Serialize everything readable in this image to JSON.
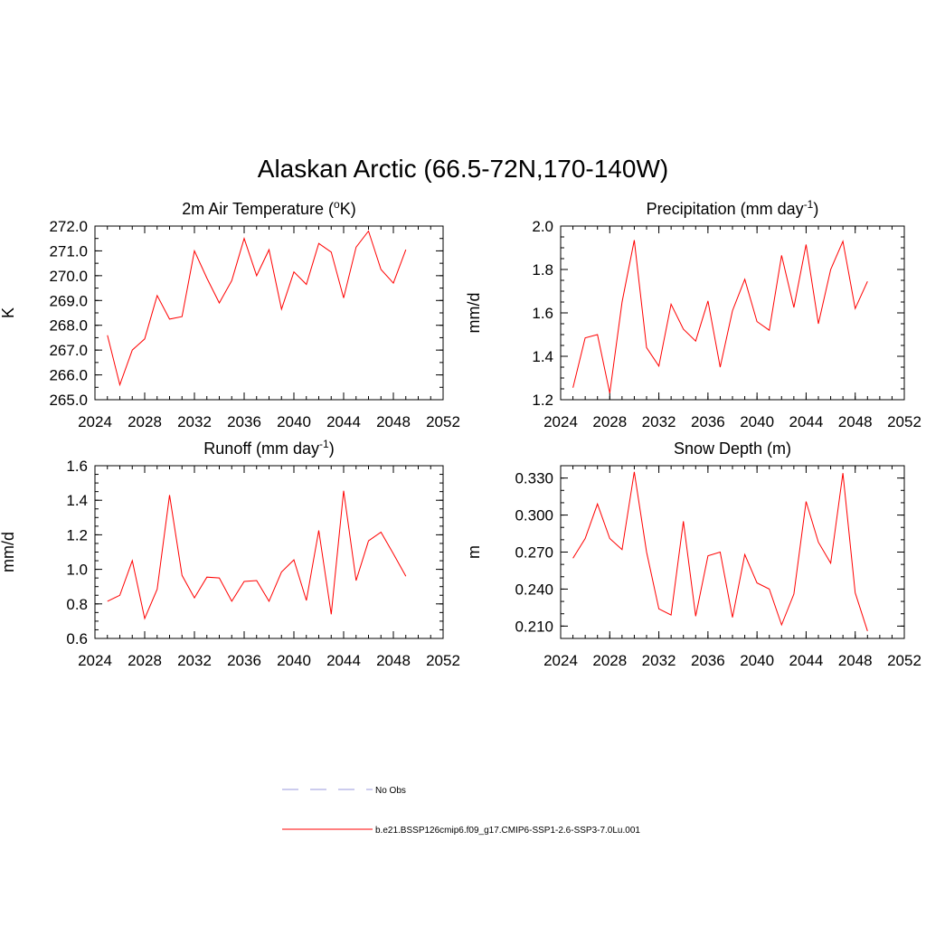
{
  "figure_title": "Alaskan Arctic (66.5-72N,170-140W)",
  "chart_data": [
    {
      "type": "line",
      "title_parts": [
        "2m Air Temperature (",
        "o",
        "K)"
      ],
      "title_modes": [
        "normal",
        "sup",
        "normal"
      ],
      "ylabel": "K",
      "xlim": [
        2024,
        2052
      ],
      "ylim": [
        265.0,
        272.0
      ],
      "xticks": [
        2024,
        2028,
        2032,
        2036,
        2040,
        2044,
        2048,
        2052
      ],
      "xtick_labels": [
        "2024",
        "2028",
        "2032",
        "2036",
        "2040",
        "2044",
        "2048",
        "2052"
      ],
      "yticks": [
        265.0,
        266.0,
        267.0,
        268.0,
        269.0,
        270.0,
        271.0,
        272.0
      ],
      "ytick_labels": [
        "265.0",
        "266.0",
        "267.0",
        "268.0",
        "269.0",
        "270.0",
        "271.0",
        "272.0"
      ],
      "y_minor_step": 0.5,
      "series": [
        {
          "color": "#ff0000",
          "x": [
            2025,
            2026,
            2027,
            2028,
            2029,
            2030,
            2031,
            2032,
            2033,
            2034,
            2035,
            2036,
            2037,
            2038,
            2039,
            2040,
            2041,
            2042,
            2043,
            2044,
            2045,
            2046,
            2047,
            2048,
            2049
          ],
          "y": [
            267.6,
            265.6,
            267.0,
            267.45,
            269.2,
            268.25,
            268.35,
            271.0,
            269.9,
            268.9,
            269.8,
            271.5,
            270.0,
            271.05,
            268.65,
            270.15,
            269.65,
            271.3,
            270.95,
            269.1,
            271.15,
            271.8,
            270.25,
            269.7,
            271.05
          ]
        }
      ]
    },
    {
      "type": "line",
      "title_parts": [
        "Precipitation (mm day",
        "-1",
        ")"
      ],
      "title_modes": [
        "normal",
        "sup",
        "normal"
      ],
      "ylabel": "mm/d",
      "xlim": [
        2024,
        2052
      ],
      "ylim": [
        1.2,
        2.0
      ],
      "xticks": [
        2024,
        2028,
        2032,
        2036,
        2040,
        2044,
        2048,
        2052
      ],
      "xtick_labels": [
        "2024",
        "2028",
        "2032",
        "2036",
        "2040",
        "2044",
        "2048",
        "2052"
      ],
      "yticks": [
        1.2,
        1.4,
        1.6,
        1.8,
        2.0
      ],
      "ytick_labels": [
        "1.2",
        "1.4",
        "1.6",
        "1.8",
        "2.0"
      ],
      "y_minor_step": 0.05,
      "series": [
        {
          "color": "#ff0000",
          "x": [
            2025,
            2026,
            2027,
            2028,
            2029,
            2030,
            2031,
            2032,
            2033,
            2034,
            2035,
            2036,
            2037,
            2038,
            2039,
            2040,
            2041,
            2042,
            2043,
            2044,
            2045,
            2046,
            2047,
            2048,
            2049
          ],
          "y": [
            1.255,
            1.485,
            1.5,
            1.23,
            1.65,
            1.935,
            1.44,
            1.355,
            1.64,
            1.525,
            1.47,
            1.655,
            1.35,
            1.61,
            1.755,
            1.56,
            1.52,
            1.865,
            1.625,
            1.915,
            1.55,
            1.8,
            1.93,
            1.62,
            1.745
          ]
        }
      ]
    },
    {
      "type": "line",
      "title_parts": [
        "Runoff (mm day",
        "-1",
        ")"
      ],
      "title_modes": [
        "normal",
        "sup",
        "normal"
      ],
      "ylabel": "mm/d",
      "xlim": [
        2024,
        2052
      ],
      "ylim": [
        0.6,
        1.6
      ],
      "xticks": [
        2024,
        2028,
        2032,
        2036,
        2040,
        2044,
        2048,
        2052
      ],
      "xtick_labels": [
        "2024",
        "2028",
        "2032",
        "2036",
        "2040",
        "2044",
        "2048",
        "2052"
      ],
      "yticks": [
        0.6,
        0.8,
        1.0,
        1.2,
        1.4,
        1.6
      ],
      "ytick_labels": [
        "0.6",
        "0.8",
        "1.0",
        "1.2",
        "1.4",
        "1.6"
      ],
      "y_minor_step": 0.05,
      "series": [
        {
          "color": "#ff0000",
          "x": [
            2025,
            2026,
            2027,
            2028,
            2029,
            2030,
            2031,
            2032,
            2033,
            2034,
            2035,
            2036,
            2037,
            2038,
            2039,
            2040,
            2041,
            2042,
            2043,
            2044,
            2045,
            2046,
            2047,
            2048,
            2049
          ],
          "y": [
            0.815,
            0.85,
            1.05,
            0.715,
            0.885,
            1.43,
            0.965,
            0.835,
            0.955,
            0.95,
            0.815,
            0.93,
            0.935,
            0.815,
            0.985,
            1.055,
            0.82,
            1.225,
            0.74,
            1.455,
            0.935,
            1.165,
            1.215,
            1.09,
            0.96
          ]
        }
      ]
    },
    {
      "type": "line",
      "title_parts": [
        "Snow Depth (m)"
      ],
      "title_modes": [
        "normal"
      ],
      "ylabel": "m",
      "xlim": [
        2024,
        2052
      ],
      "ylim": [
        0.2,
        0.34
      ],
      "xticks": [
        2024,
        2028,
        2032,
        2036,
        2040,
        2044,
        2048,
        2052
      ],
      "xtick_labels": [
        "2024",
        "2028",
        "2032",
        "2036",
        "2040",
        "2044",
        "2048",
        "2052"
      ],
      "yticks": [
        0.21,
        0.24,
        0.27,
        0.3,
        0.33
      ],
      "ytick_labels": [
        "0.210",
        "0.240",
        "0.270",
        "0.300",
        "0.330"
      ],
      "y_minor_step": 0.01,
      "series": [
        {
          "color": "#ff0000",
          "x": [
            2025,
            2026,
            2027,
            2028,
            2029,
            2030,
            2031,
            2032,
            2033,
            2034,
            2035,
            2036,
            2037,
            2038,
            2039,
            2040,
            2041,
            2042,
            2043,
            2044,
            2045,
            2046,
            2047,
            2048,
            2049
          ],
          "y": [
            0.265,
            0.281,
            0.309,
            0.281,
            0.272,
            0.335,
            0.27,
            0.224,
            0.219,
            0.295,
            0.218,
            0.267,
            0.27,
            0.217,
            0.268,
            0.245,
            0.24,
            0.211,
            0.236,
            0.311,
            0.278,
            0.261,
            0.334,
            0.237,
            0.206
          ]
        }
      ]
    }
  ],
  "legend": {
    "items": [
      {
        "label": "No Obs",
        "color": "#9999dd",
        "style": "dashed"
      },
      {
        "label": "b.e21.BSSP126cmip6.f09_g17.CMIP6-SSP1-2.6-SSP3-7.0Lu.001",
        "color": "#ff0000",
        "style": "solid"
      }
    ]
  }
}
